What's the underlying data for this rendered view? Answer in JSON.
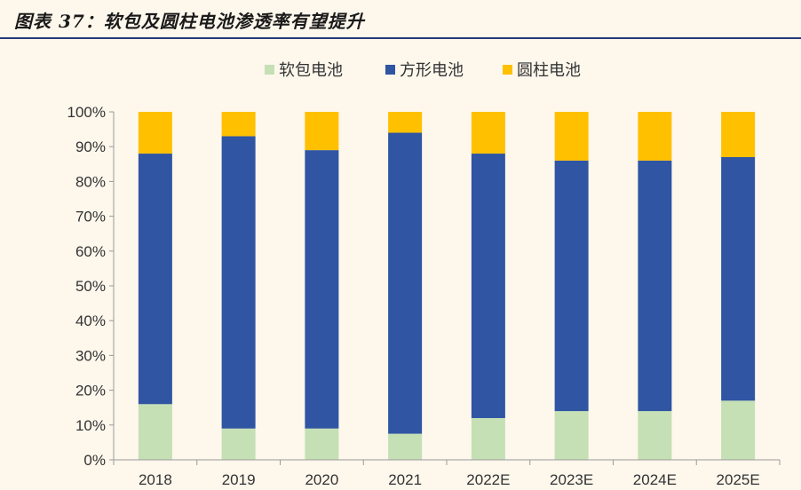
{
  "header": {
    "title": "图表 37：软包及圆柱电池渗透率有望提升"
  },
  "chart_data": {
    "type": "bar",
    "stacked": true,
    "categories": [
      "2018",
      "2019",
      "2020",
      "2021",
      "2022E",
      "2023E",
      "2024E",
      "2025E"
    ],
    "series": [
      {
        "name": "软包电池",
        "color": "#c5e0b4",
        "values": [
          16,
          9,
          9,
          7.5,
          12,
          14,
          14,
          17
        ]
      },
      {
        "name": "方形电池",
        "color": "#2f55a3",
        "values": [
          72,
          84,
          80,
          86.5,
          76,
          72,
          72,
          70
        ]
      },
      {
        "name": "圆柱电池",
        "color": "#ffc000",
        "values": [
          12,
          7,
          11,
          6,
          12,
          14,
          14,
          13
        ]
      }
    ],
    "ylim": [
      0,
      100
    ],
    "yticks": [
      "0%",
      "10%",
      "20%",
      "30%",
      "40%",
      "50%",
      "60%",
      "70%",
      "80%",
      "90%",
      "100%"
    ],
    "legend_position": "top-center",
    "grid": false
  }
}
